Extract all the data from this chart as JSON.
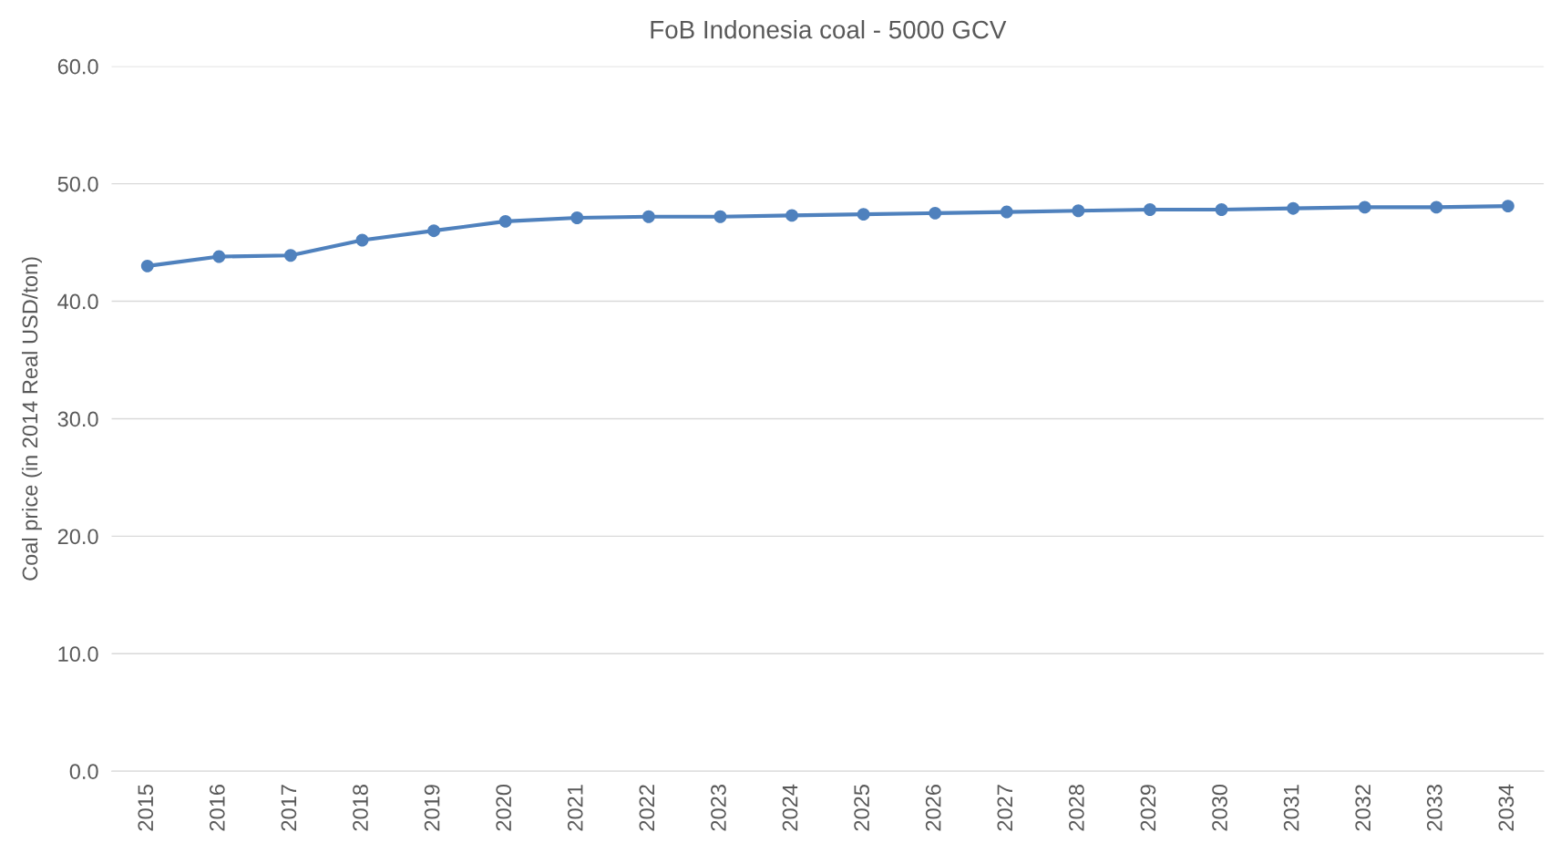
{
  "chart_data": {
    "type": "line",
    "title": "FoB Indonesia coal - 5000 GCV",
    "ylabel": "Coal price (in 2014 Real USD/ton)",
    "categories": [
      "2015",
      "2016",
      "2017",
      "2018",
      "2019",
      "2020",
      "2021",
      "2022",
      "2023",
      "2024",
      "2025",
      "2026",
      "2027",
      "2028",
      "2029",
      "2030",
      "2031",
      "2032",
      "2033",
      "2034"
    ],
    "series": [
      {
        "color": "#4f81bd",
        "values": [
          43.0,
          43.8,
          43.9,
          45.2,
          46.0,
          46.8,
          47.1,
          47.2,
          47.2,
          47.3,
          47.4,
          47.5,
          47.6,
          47.7,
          47.8,
          47.8,
          47.9,
          48.0,
          48.0,
          48.1
        ]
      }
    ],
    "ylim": [
      0,
      60
    ],
    "yticks": [
      {
        "value": 0,
        "label": "0.0"
      },
      {
        "value": 10,
        "label": "10.0"
      },
      {
        "value": 20,
        "label": "20.0"
      },
      {
        "value": 30,
        "label": "30.0"
      },
      {
        "value": 40,
        "label": "40.0"
      },
      {
        "value": 50,
        "label": "50.0"
      },
      {
        "value": 60,
        "label": "60.0"
      }
    ],
    "grid": "y",
    "marker": "circle",
    "line_style": "solid"
  }
}
